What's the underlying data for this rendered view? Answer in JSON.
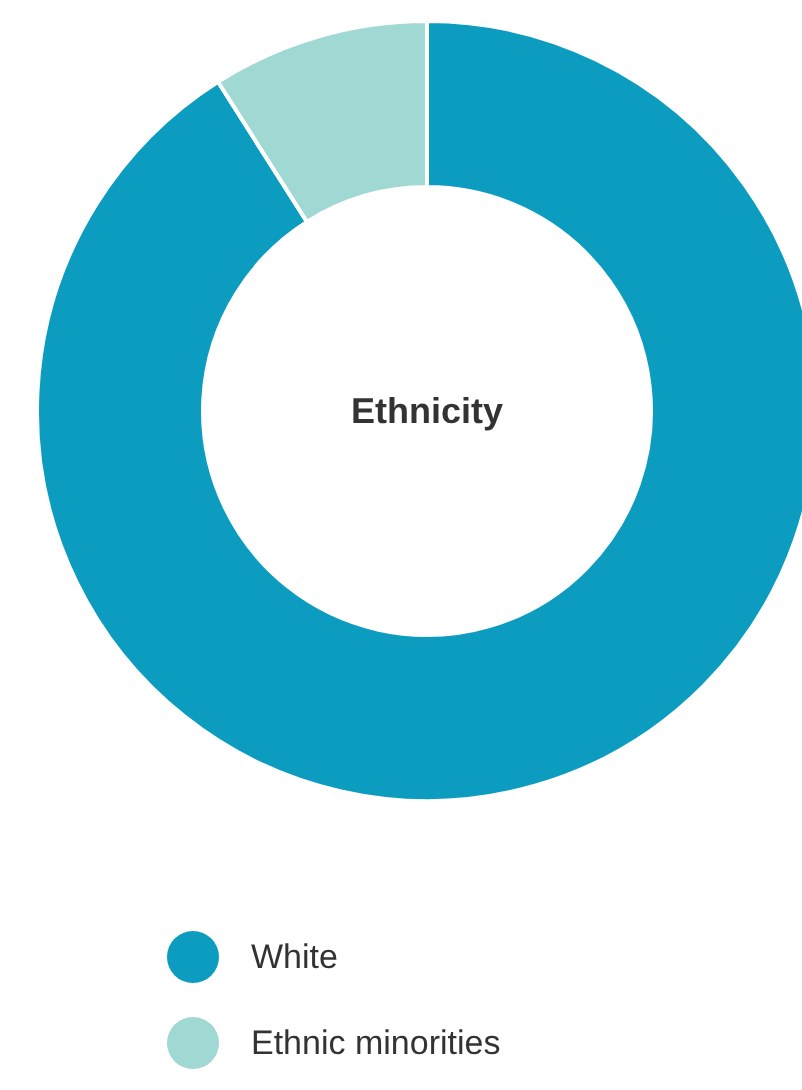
{
  "chart_data": {
    "type": "donut",
    "title": "Ethnicity",
    "categories": [
      "White",
      "Ethnic minorities"
    ],
    "values": [
      91,
      9
    ],
    "colors": [
      "#0b9cc0",
      "#a0d8d4"
    ],
    "legend": "bottom"
  }
}
